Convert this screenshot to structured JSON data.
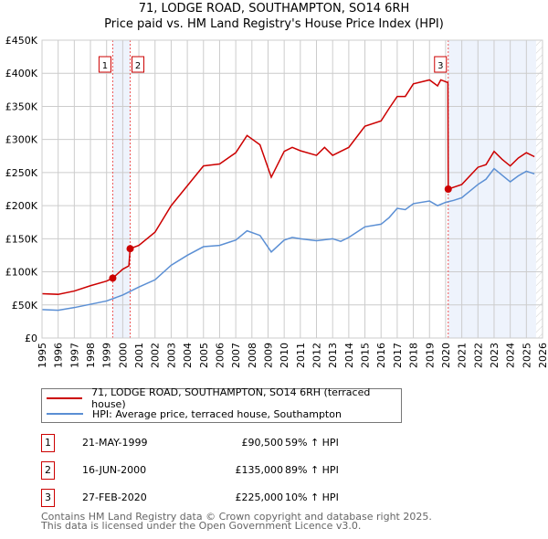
{
  "chart_data": {
    "type": "line",
    "title": "71, LODGE ROAD, SOUTHAMPTON, SO14 6RH",
    "subtitle": "Price paid vs. HM Land Registry's House Price Index (HPI)",
    "xlim": [
      1995,
      2026
    ],
    "ylim": [
      0,
      450000
    ],
    "x_ticks": [
      "1995",
      "1996",
      "1997",
      "1998",
      "1999",
      "2000",
      "2001",
      "2002",
      "2003",
      "2004",
      "2005",
      "2006",
      "2007",
      "2008",
      "2009",
      "2010",
      "2011",
      "2012",
      "2013",
      "2014",
      "2015",
      "2016",
      "2017",
      "2018",
      "2019",
      "2020",
      "2021",
      "2022",
      "2023",
      "2024",
      "2025",
      "2026"
    ],
    "y_ticks": [
      "£0",
      "£50K",
      "£100K",
      "£150K",
      "£200K",
      "£250K",
      "£300K",
      "£350K",
      "£400K",
      "£450K"
    ],
    "grid": true,
    "series": [
      {
        "name": "71, LODGE ROAD, SOUTHAMPTON, SO14 6RH (terraced house)",
        "color": "#cc0000",
        "points": [
          [
            1995,
            67000
          ],
          [
            1996,
            66000
          ],
          [
            1997,
            71000
          ],
          [
            1998,
            79000
          ],
          [
            1999,
            86000
          ],
          [
            1999.38,
            90500
          ],
          [
            2000,
            104000
          ],
          [
            2000.38,
            109000
          ],
          [
            2000.46,
            135000
          ],
          [
            2001,
            140000
          ],
          [
            2002,
            160000
          ],
          [
            2003,
            200000
          ],
          [
            2004,
            230000
          ],
          [
            2005,
            260000
          ],
          [
            2006,
            263000
          ],
          [
            2007,
            280000
          ],
          [
            2007.7,
            306000
          ],
          [
            2008.5,
            292000
          ],
          [
            2009.2,
            243000
          ],
          [
            2010,
            282000
          ],
          [
            2010.5,
            288000
          ],
          [
            2011,
            283000
          ],
          [
            2012,
            276000
          ],
          [
            2012.5,
            288000
          ],
          [
            2013,
            276000
          ],
          [
            2014,
            288000
          ],
          [
            2015,
            320000
          ],
          [
            2016,
            328000
          ],
          [
            2016.5,
            347000
          ],
          [
            2017,
            365000
          ],
          [
            2017.5,
            365000
          ],
          [
            2018,
            384000
          ],
          [
            2019,
            390000
          ],
          [
            2019.5,
            381000
          ],
          [
            2019.7,
            390000
          ],
          [
            2020.14,
            386000
          ],
          [
            2020.16,
            225000
          ],
          [
            2021,
            232000
          ],
          [
            2022,
            258000
          ],
          [
            2022.5,
            262000
          ],
          [
            2023,
            282000
          ],
          [
            2023.5,
            270000
          ],
          [
            2024,
            260000
          ],
          [
            2024.5,
            272000
          ],
          [
            2025,
            280000
          ],
          [
            2025.5,
            274000
          ]
        ]
      },
      {
        "name": "HPI: Average price, terraced house, Southampton",
        "color": "#5b8fd4",
        "points": [
          [
            1995,
            43000
          ],
          [
            1996,
            42000
          ],
          [
            1997,
            46000
          ],
          [
            1998,
            51000
          ],
          [
            1999,
            56000
          ],
          [
            2000,
            65000
          ],
          [
            2001,
            77000
          ],
          [
            2002,
            88000
          ],
          [
            2003,
            110000
          ],
          [
            2004,
            125000
          ],
          [
            2005,
            138000
          ],
          [
            2006,
            140000
          ],
          [
            2007,
            148000
          ],
          [
            2007.7,
            162000
          ],
          [
            2008.5,
            155000
          ],
          [
            2009.2,
            130000
          ],
          [
            2010,
            148000
          ],
          [
            2010.5,
            152000
          ],
          [
            2011,
            150000
          ],
          [
            2012,
            147000
          ],
          [
            2013,
            150000
          ],
          [
            2013.5,
            146000
          ],
          [
            2014,
            152000
          ],
          [
            2015,
            168000
          ],
          [
            2016,
            172000
          ],
          [
            2016.5,
            182000
          ],
          [
            2017,
            196000
          ],
          [
            2017.5,
            194000
          ],
          [
            2018,
            203000
          ],
          [
            2019,
            207000
          ],
          [
            2019.5,
            200000
          ],
          [
            2020,
            205000
          ],
          [
            2020.5,
            208000
          ],
          [
            2021,
            212000
          ],
          [
            2022,
            232000
          ],
          [
            2022.5,
            240000
          ],
          [
            2023,
            256000
          ],
          [
            2023.5,
            246000
          ],
          [
            2024,
            236000
          ],
          [
            2024.5,
            245000
          ],
          [
            2025,
            252000
          ],
          [
            2025.5,
            248000
          ]
        ]
      }
    ],
    "sales": [
      {
        "label": "1",
        "date": "21-MAY-1999",
        "x": 1999.38,
        "price_value": 90500,
        "price": "£90,500",
        "hpi": "59% ↑ HPI"
      },
      {
        "label": "2",
        "date": "16-JUN-2000",
        "x": 2000.46,
        "price_value": 135000,
        "price": "£135,000",
        "hpi": "89% ↑ HPI"
      },
      {
        "label": "3",
        "date": "27-FEB-2020",
        "x": 2020.16,
        "price_value": 225000,
        "price": "£225,000",
        "hpi": "10% ↑ HPI"
      }
    ],
    "data_end": 2025.6
  },
  "legend": {
    "property": "71, LODGE ROAD, SOUTHAMPTON, SO14 6RH (terraced house)",
    "hpi": "HPI: Average price, terraced house, Southampton"
  },
  "footer": {
    "line1": "Contains HM Land Registry data © Crown copyright and database right 2025.",
    "line2": "This data is licensed under the Open Government Licence v3.0."
  }
}
